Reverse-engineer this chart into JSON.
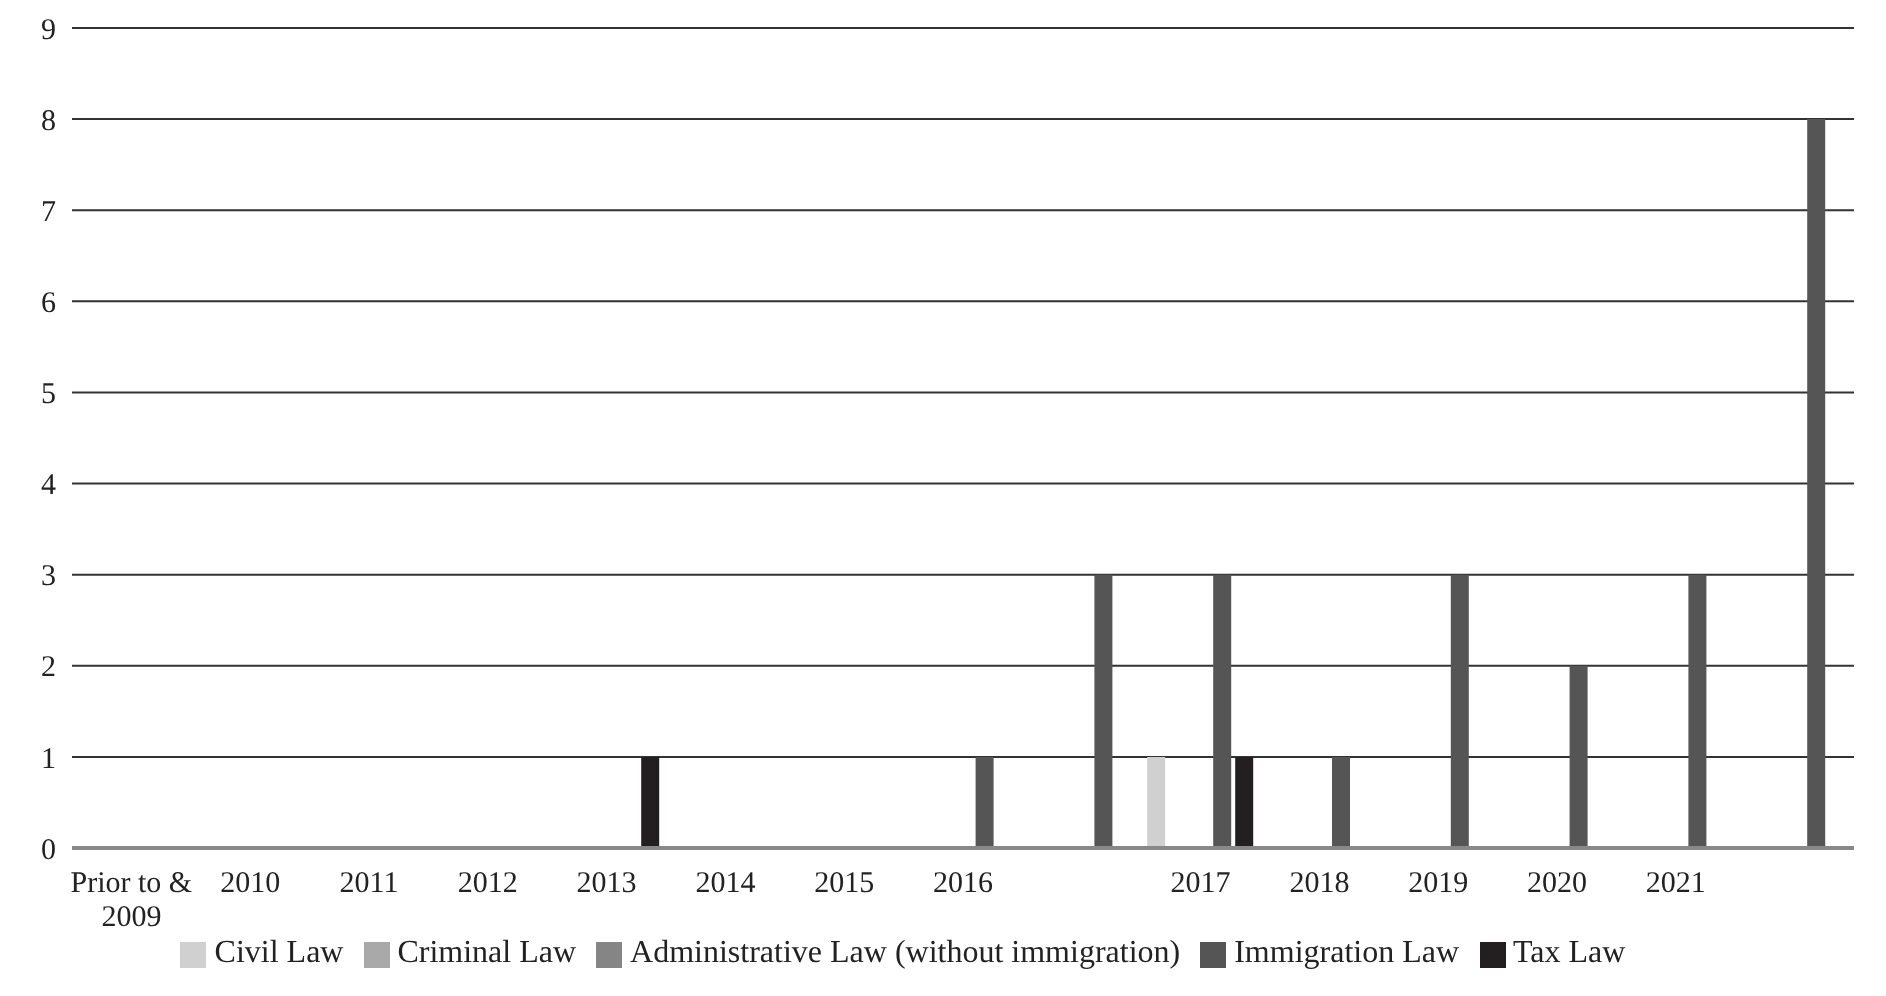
{
  "chart_data": {
    "type": "bar",
    "categories": [
      "Prior to & 2009",
      "2010",
      "2011",
      "2012",
      "2013",
      "2014",
      "2015",
      "2016",
      null,
      "2017",
      "2018",
      "2019",
      "2020",
      "2021",
      null
    ],
    "series": [
      {
        "name": "Civil Law",
        "color": "#d0d0d0",
        "values": [
          0,
          0,
          0,
          0,
          0,
          0,
          0,
          0,
          0,
          1,
          0,
          0,
          0,
          0,
          0
        ]
      },
      {
        "name": "Criminal Law",
        "color": "#a9a9a9",
        "values": [
          0,
          0,
          0,
          0,
          0,
          0,
          0,
          0,
          0,
          0,
          0,
          0,
          0,
          0,
          0
        ]
      },
      {
        "name": "Administrative Law (without immigration)",
        "color": "#858585",
        "values": [
          0,
          0,
          0,
          0,
          0,
          0,
          0,
          0,
          0,
          0,
          0,
          0,
          0,
          0,
          0
        ]
      },
      {
        "name": "Immigration Law",
        "color": "#555555",
        "values": [
          0,
          0,
          0,
          0,
          0,
          0,
          0,
          1,
          3,
          3,
          1,
          3,
          2,
          3,
          8
        ]
      },
      {
        "name": "Tax Law",
        "color": "#231f20",
        "values": [
          0,
          0,
          0,
          0,
          1,
          0,
          0,
          0,
          0,
          1,
          0,
          0,
          0,
          0,
          0
        ]
      }
    ],
    "ylim": [
      0,
      9
    ],
    "yticks": [
      0,
      1,
      2,
      3,
      4,
      5,
      6,
      7,
      8,
      9
    ],
    "grid": "y",
    "legend": "bottom"
  }
}
